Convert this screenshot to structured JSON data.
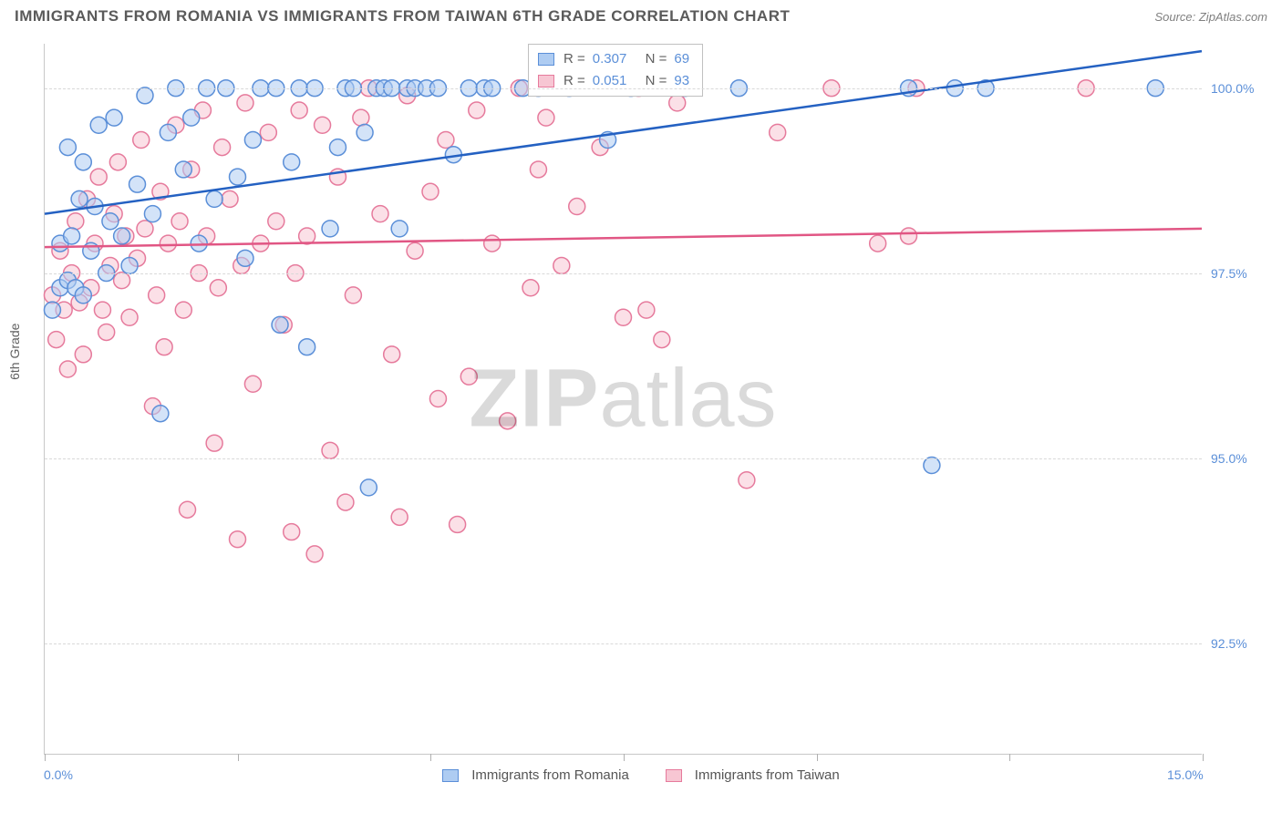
{
  "title": "IMMIGRANTS FROM ROMANIA VS IMMIGRANTS FROM TAIWAN 6TH GRADE CORRELATION CHART",
  "source_label": "Source: ZipAtlas.com",
  "watermark": {
    "bold": "ZIP",
    "rest": "atlas"
  },
  "ylabel": "6th Grade",
  "chart": {
    "type": "scatter+trend",
    "xlim": [
      0.0,
      15.0
    ],
    "ylim": [
      91.0,
      100.6
    ],
    "ytick_values": [
      92.5,
      95.0,
      97.5,
      100.0
    ],
    "ytick_labels": [
      "92.5%",
      "95.0%",
      "97.5%",
      "100.0%"
    ],
    "xtick_values": [
      0,
      2.5,
      5.0,
      7.5,
      10.0,
      12.5,
      15.0
    ],
    "xlim_label_left": "0.0%",
    "xlim_label_right": "15.0%",
    "background_color": "#ffffff",
    "grid_color": "#d8d8d8",
    "point_radius": 9,
    "series": {
      "romania": {
        "label": "Immigrants from Romania",
        "fill": "#aeccf2",
        "stroke": "#5b8fd8",
        "trend_color": "#2461c2",
        "R": "0.307",
        "N": "69",
        "trend": {
          "x1": 0.0,
          "y1": 98.3,
          "x2": 15.0,
          "y2": 100.5
        },
        "points": [
          [
            0.1,
            97.0
          ],
          [
            0.2,
            97.3
          ],
          [
            0.2,
            97.9
          ],
          [
            0.3,
            97.4
          ],
          [
            0.3,
            99.2
          ],
          [
            0.35,
            98.0
          ],
          [
            0.4,
            97.3
          ],
          [
            0.45,
            98.5
          ],
          [
            0.5,
            97.2
          ],
          [
            0.5,
            99.0
          ],
          [
            0.6,
            97.8
          ],
          [
            0.65,
            98.4
          ],
          [
            0.7,
            99.5
          ],
          [
            0.8,
            97.5
          ],
          [
            0.85,
            98.2
          ],
          [
            0.9,
            99.6
          ],
          [
            1.0,
            98.0
          ],
          [
            1.1,
            97.6
          ],
          [
            1.2,
            98.7
          ],
          [
            1.3,
            99.9
          ],
          [
            1.4,
            98.3
          ],
          [
            1.5,
            95.6
          ],
          [
            1.6,
            99.4
          ],
          [
            1.7,
            100.0
          ],
          [
            1.8,
            98.9
          ],
          [
            1.9,
            99.6
          ],
          [
            2.0,
            97.9
          ],
          [
            2.1,
            100.0
          ],
          [
            2.2,
            98.5
          ],
          [
            2.35,
            100.0
          ],
          [
            2.5,
            98.8
          ],
          [
            2.6,
            97.7
          ],
          [
            2.7,
            99.3
          ],
          [
            2.8,
            100.0
          ],
          [
            3.0,
            100.0
          ],
          [
            3.05,
            96.8
          ],
          [
            3.2,
            99.0
          ],
          [
            3.3,
            100.0
          ],
          [
            3.4,
            96.5
          ],
          [
            3.5,
            100.0
          ],
          [
            3.7,
            98.1
          ],
          [
            3.8,
            99.2
          ],
          [
            3.9,
            100.0
          ],
          [
            4.0,
            100.0
          ],
          [
            4.15,
            99.4
          ],
          [
            4.2,
            94.6
          ],
          [
            4.3,
            100.0
          ],
          [
            4.4,
            100.0
          ],
          [
            4.5,
            100.0
          ],
          [
            4.6,
            98.1
          ],
          [
            4.7,
            100.0
          ],
          [
            4.8,
            100.0
          ],
          [
            4.95,
            100.0
          ],
          [
            5.1,
            100.0
          ],
          [
            5.3,
            99.1
          ],
          [
            5.5,
            100.0
          ],
          [
            5.7,
            100.0
          ],
          [
            5.8,
            100.0
          ],
          [
            6.2,
            100.0
          ],
          [
            6.4,
            100.0
          ],
          [
            6.8,
            100.0
          ],
          [
            7.3,
            99.3
          ],
          [
            7.6,
            100.0
          ],
          [
            8.3,
            100.0
          ],
          [
            9.0,
            100.0
          ],
          [
            11.2,
            100.0
          ],
          [
            11.5,
            94.9
          ],
          [
            11.8,
            100.0
          ],
          [
            12.2,
            100.0
          ],
          [
            14.4,
            100.0
          ]
        ]
      },
      "taiwan": {
        "label": "Immigrants from Taiwan",
        "fill": "#f7c6d3",
        "stroke": "#e67a9c",
        "trend_color": "#e15684",
        "R": "0.051",
        "N": "93",
        "trend": {
          "x1": 0.0,
          "y1": 97.85,
          "x2": 15.0,
          "y2": 98.1
        },
        "points": [
          [
            0.1,
            97.2
          ],
          [
            0.15,
            96.6
          ],
          [
            0.2,
            97.8
          ],
          [
            0.25,
            97.0
          ],
          [
            0.3,
            96.2
          ],
          [
            0.35,
            97.5
          ],
          [
            0.4,
            98.2
          ],
          [
            0.45,
            97.1
          ],
          [
            0.5,
            96.4
          ],
          [
            0.55,
            98.5
          ],
          [
            0.6,
            97.3
          ],
          [
            0.65,
            97.9
          ],
          [
            0.7,
            98.8
          ],
          [
            0.75,
            97.0
          ],
          [
            0.8,
            96.7
          ],
          [
            0.85,
            97.6
          ],
          [
            0.9,
            98.3
          ],
          [
            0.95,
            99.0
          ],
          [
            1.0,
            97.4
          ],
          [
            1.05,
            98.0
          ],
          [
            1.1,
            96.9
          ],
          [
            1.2,
            97.7
          ],
          [
            1.25,
            99.3
          ],
          [
            1.3,
            98.1
          ],
          [
            1.4,
            95.7
          ],
          [
            1.45,
            97.2
          ],
          [
            1.5,
            98.6
          ],
          [
            1.55,
            96.5
          ],
          [
            1.6,
            97.9
          ],
          [
            1.7,
            99.5
          ],
          [
            1.75,
            98.2
          ],
          [
            1.8,
            97.0
          ],
          [
            1.85,
            94.3
          ],
          [
            1.9,
            98.9
          ],
          [
            2.0,
            97.5
          ],
          [
            2.05,
            99.7
          ],
          [
            2.1,
            98.0
          ],
          [
            2.2,
            95.2
          ],
          [
            2.25,
            97.3
          ],
          [
            2.3,
            99.2
          ],
          [
            2.4,
            98.5
          ],
          [
            2.5,
            93.9
          ],
          [
            2.55,
            97.6
          ],
          [
            2.6,
            99.8
          ],
          [
            2.7,
            96.0
          ],
          [
            2.8,
            97.9
          ],
          [
            2.9,
            99.4
          ],
          [
            3.0,
            98.2
          ],
          [
            3.1,
            96.8
          ],
          [
            3.2,
            94.0
          ],
          [
            3.25,
            97.5
          ],
          [
            3.3,
            99.7
          ],
          [
            3.4,
            98.0
          ],
          [
            3.5,
            93.7
          ],
          [
            3.6,
            99.5
          ],
          [
            3.7,
            95.1
          ],
          [
            3.8,
            98.8
          ],
          [
            3.9,
            94.4
          ],
          [
            4.0,
            97.2
          ],
          [
            4.1,
            99.6
          ],
          [
            4.2,
            100.0
          ],
          [
            4.35,
            98.3
          ],
          [
            4.5,
            96.4
          ],
          [
            4.6,
            94.2
          ],
          [
            4.7,
            99.9
          ],
          [
            4.8,
            97.8
          ],
          [
            5.0,
            98.6
          ],
          [
            5.1,
            95.8
          ],
          [
            5.2,
            99.3
          ],
          [
            5.35,
            94.1
          ],
          [
            5.5,
            96.1
          ],
          [
            5.6,
            99.7
          ],
          [
            5.8,
            97.9
          ],
          [
            6.0,
            95.5
          ],
          [
            6.15,
            100.0
          ],
          [
            6.3,
            97.3
          ],
          [
            6.4,
            98.9
          ],
          [
            6.5,
            99.6
          ],
          [
            6.7,
            97.6
          ],
          [
            6.9,
            98.4
          ],
          [
            7.2,
            99.2
          ],
          [
            7.5,
            96.9
          ],
          [
            7.7,
            100.0
          ],
          [
            7.8,
            97.0
          ],
          [
            8.0,
            96.6
          ],
          [
            8.2,
            99.8
          ],
          [
            9.1,
            94.7
          ],
          [
            9.5,
            99.4
          ],
          [
            10.2,
            100.0
          ],
          [
            10.8,
            97.9
          ],
          [
            11.2,
            98.0
          ],
          [
            11.3,
            100.0
          ],
          [
            13.5,
            100.0
          ]
        ]
      }
    }
  },
  "legend": {
    "r_label": "R =",
    "n_label": "N ="
  }
}
